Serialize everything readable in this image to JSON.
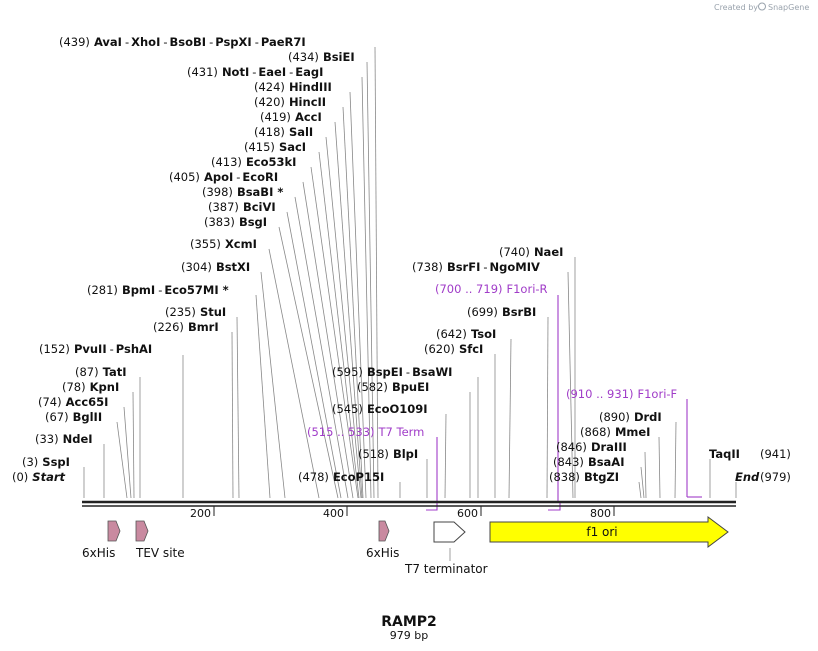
{
  "credit": "Created by",
  "brand": "SnapGene",
  "title": "RAMP2",
  "length_label": "979 bp",
  "ends": [
    {
      "pos": "(0)",
      "name": "Start"
    },
    {
      "pos": "(979)",
      "name": "End"
    }
  ],
  "sites": [
    {
      "pos": "(439)",
      "names": [
        "AvaI",
        "XhoI",
        "BsoBI",
        "PspXI",
        "PaeR7I"
      ]
    },
    {
      "pos": "(434)",
      "names": [
        "BsiEI"
      ]
    },
    {
      "pos": "(431)",
      "names": [
        "NotI",
        "EaeI",
        "EagI"
      ]
    },
    {
      "pos": "(424)",
      "names": [
        "HindIII"
      ]
    },
    {
      "pos": "(420)",
      "names": [
        "HincII"
      ]
    },
    {
      "pos": "(419)",
      "names": [
        "AccI"
      ]
    },
    {
      "pos": "(418)",
      "names": [
        "SalI"
      ]
    },
    {
      "pos": "(415)",
      "names": [
        "SacI"
      ]
    },
    {
      "pos": "(413)",
      "names": [
        "Eco53kI"
      ]
    },
    {
      "pos": "(405)",
      "names": [
        "ApoI",
        "EcoRI"
      ]
    },
    {
      "pos": "(398)",
      "names": [
        "BsaBI *"
      ]
    },
    {
      "pos": "(387)",
      "names": [
        "BciVI"
      ]
    },
    {
      "pos": "(383)",
      "names": [
        "BsgI"
      ]
    },
    {
      "pos": "(355)",
      "names": [
        "XcmI"
      ]
    },
    {
      "pos": "(304)",
      "names": [
        "BstXI"
      ]
    },
    {
      "pos": "(281)",
      "names": [
        "BpmI",
        "Eco57MI *"
      ]
    },
    {
      "pos": "(235)",
      "names": [
        "StuI"
      ]
    },
    {
      "pos": "(226)",
      "names": [
        "BmrI"
      ]
    },
    {
      "pos": "(152)",
      "names": [
        "PvuII",
        "PshAI"
      ]
    },
    {
      "pos": "(87)",
      "names": [
        "TatI"
      ]
    },
    {
      "pos": "(78)",
      "names": [
        "KpnI"
      ]
    },
    {
      "pos": "(74)",
      "names": [
        "Acc65I"
      ]
    },
    {
      "pos": "(67)",
      "names": [
        "BglII"
      ]
    },
    {
      "pos": "(33)",
      "names": [
        "NdeI"
      ]
    },
    {
      "pos": "(3)",
      "names": [
        "SspI"
      ]
    },
    {
      "pos": "(740)",
      "names": [
        "NaeI"
      ]
    },
    {
      "pos": "(738)",
      "names": [
        "BsrFI",
        "NgoMIV"
      ]
    },
    {
      "pos": "(699)",
      "names": [
        "BsrBI"
      ]
    },
    {
      "pos": "(642)",
      "names": [
        "TsoI"
      ]
    },
    {
      "pos": "(620)",
      "names": [
        "SfcI"
      ]
    },
    {
      "pos": "(595)",
      "names": [
        "BspEI",
        "BsaWI"
      ]
    },
    {
      "pos": "(582)",
      "names": [
        "BpuEI"
      ]
    },
    {
      "pos": "(545)",
      "names": [
        "EcoO109I"
      ]
    },
    {
      "pos": "(518)",
      "names": [
        "BlpI"
      ]
    },
    {
      "pos": "(478)",
      "names": [
        "EcoP15I"
      ]
    },
    {
      "pos": "(890)",
      "names": [
        "DrdI"
      ]
    },
    {
      "pos": "(868)",
      "names": [
        "MmeI"
      ]
    },
    {
      "pos": "(846)",
      "names": [
        "DraIII"
      ]
    },
    {
      "pos": "(843)",
      "names": [
        "BsaAI"
      ]
    },
    {
      "pos": "(838)",
      "names": [
        "BtgZI"
      ]
    },
    {
      "pos": "(941)",
      "names": [
        "TaqII"
      ]
    }
  ],
  "primers": [
    {
      "range": "(700 .. 719)",
      "name": "F1ori-R"
    },
    {
      "range": "(515 .. 533)",
      "name": "T7 Term"
    },
    {
      "range": "(910 .. 931)",
      "name": "F1ori-F"
    }
  ],
  "ruler": [
    "200",
    "400",
    "600",
    "800"
  ],
  "features": [
    {
      "name": "6xHis"
    },
    {
      "name": "TEV site"
    },
    {
      "name": "6xHis"
    },
    {
      "name": "T7 terminator"
    },
    {
      "name": "f1 ori"
    }
  ],
  "colors": {
    "backbone": "#222222",
    "primer": "#a03cc8",
    "tag": "#c98aa0",
    "f1ori": "#ffff00",
    "leader": "#888888"
  }
}
